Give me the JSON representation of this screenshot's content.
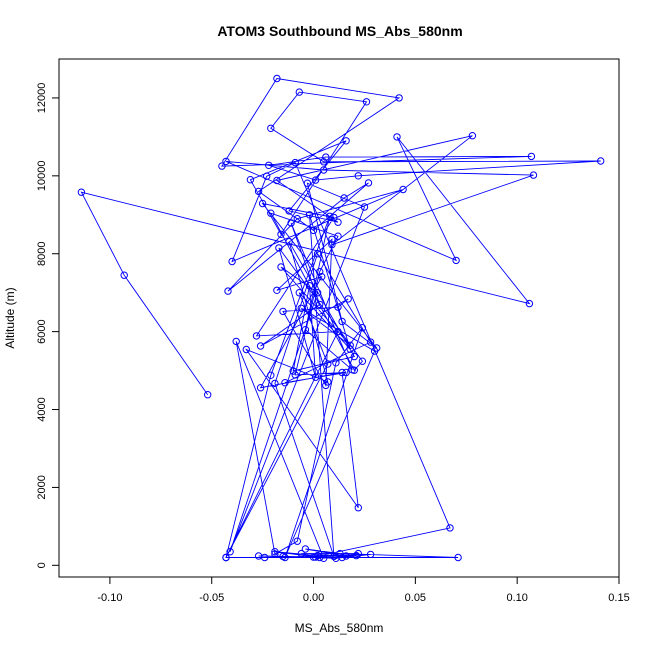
{
  "chart_data": {
    "type": "scatter",
    "title": "ATOM3 Southbound MS_Abs_580nm",
    "xlabel": "MS_Abs_580nm",
    "ylabel": "Altitude (m)",
    "xlim": [
      -0.125,
      0.15
    ],
    "ylim": [
      -300,
      13000
    ],
    "xticks": [
      -0.1,
      -0.05,
      0.0,
      0.05,
      0.1,
      0.15
    ],
    "xtick_labels": [
      "-0.10",
      "-0.05",
      "0.00",
      "0.05",
      "0.10",
      "0.15"
    ],
    "yticks": [
      0,
      2000,
      4000,
      6000,
      8000,
      10000,
      12000
    ],
    "ytick_labels": [
      "0",
      "2000",
      "4000",
      "6000",
      "8000",
      "10000",
      "12000"
    ],
    "grid": false,
    "connected": true,
    "marker": "open-circle",
    "color": "#0000ff",
    "series": [
      {
        "x": [
          -0.052,
          -0.093,
          -0.114,
          0.106,
          0.041,
          0.07,
          -0.043,
          0.005,
          0.108,
          0.009,
          0.078,
          -0.018,
          0.012,
          -0.012,
          0.016,
          -0.031,
          -0.016,
          0.026,
          -0.007,
          -0.021,
          0.005,
          0.141,
          0.022,
          0.001,
          -0.022,
          0.006,
          0.107,
          -0.045,
          -0.018,
          0.042,
          -0.027,
          0.0,
          0.027,
          0.015,
          -0.042,
          -0.008,
          0.044,
          -0.04,
          -0.023,
          -0.009,
          0.067,
          0.0,
          -0.024,
          0.021,
          0.005,
          -0.038,
          -0.019,
          -0.008,
          0.011,
          0.024,
          -0.014,
          0.03,
          -0.006,
          0.018,
          -0.016,
          0.002,
          -0.041,
          0.025,
          -0.003,
          0.014,
          0.031,
          -0.025,
          0.01,
          -0.028,
          0.012,
          -0.043,
          -0.021,
          0.008,
          -0.004,
          0.019,
          -0.011,
          0.003,
          -0.026,
          0.017,
          0.012,
          -0.015,
          0.006,
          0.009,
          -0.018,
          0.004,
          -0.026,
          0.014,
          0.022,
          -0.033,
          0.007,
          -0.012,
          0.02,
          -0.01,
          -0.002,
          0.001,
          -0.017,
          0.024,
          0.02,
          -0.021,
          0.012,
          0.003,
          -0.009,
          0.016,
          -0.014,
          0.028,
          0.002,
          -0.019,
          0.01,
          -0.002,
          0.018,
          -0.007,
          0.007,
          -0.043,
          0.071,
          0.013,
          -0.004,
          0.016,
          0.022,
          -0.006,
          0.001,
          -0.015,
          0.011,
          0.028,
          0.002,
          -0.019,
          0.003,
          0.014,
          -0.027
        ],
        "y": [
          4380,
          7450,
          9580,
          6720,
          11000,
          7830,
          10370,
          10150,
          10020,
          8230,
          11030,
          9880,
          8810,
          9100,
          10900,
          9900,
          8500,
          11900,
          12150,
          11220,
          10360,
          10380,
          10000,
          9890,
          10270,
          10480,
          10500,
          10250,
          12500,
          12000,
          9600,
          8600,
          9820,
          9430,
          7040,
          8900,
          9650,
          7800,
          9990,
          10340,
          960,
          210,
          200,
          250,
          180,
          5750,
          290,
          620,
          5200,
          6100,
          200,
          5500,
          6600,
          5650,
          7660,
          7000,
          350,
          9200,
          9810,
          6260,
          5580,
          9290,
          8930,
          5890,
          6000,
          200,
          4880,
          8960,
          6050,
          5020,
          8790,
          6700,
          5630,
          6840,
          6630,
          6520,
          4620,
          8370,
          7060,
          7410,
          4560,
          4950,
          1480,
          5540,
          4710,
          8310,
          5360,
          4990,
          7180,
          4830,
          8150,
          5240,
          5010,
          9040,
          8450,
          7540,
          4890,
          4950,
          4690,
          5730,
          8000,
          4670,
          230,
          9000,
          5550,
          7000,
          5170,
          200,
          200,
          300,
          420,
          240,
          300,
          300,
          210,
          230,
          180,
          280,
          250,
          350,
          200,
          200,
          240
        ]
      }
    ]
  }
}
